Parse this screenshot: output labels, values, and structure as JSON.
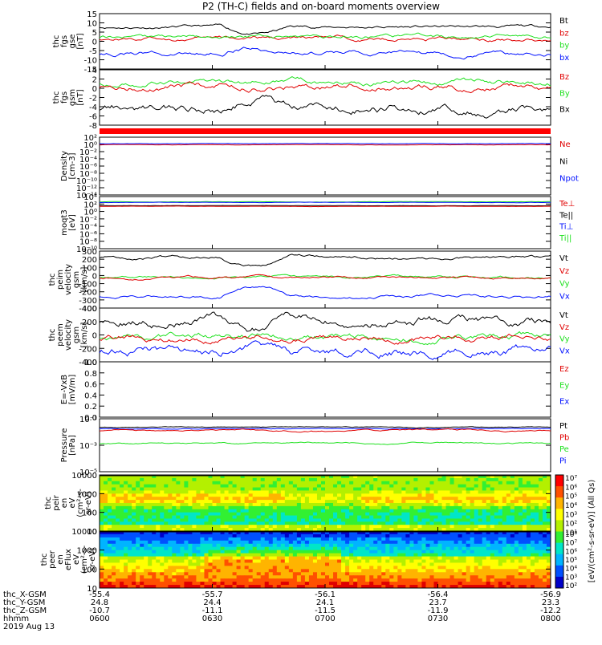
{
  "title": "P2 (TH-C) fields and on-board moments overview",
  "colors": {
    "black": "#000000",
    "red": "#e00000",
    "green": "#1ee01e",
    "blue": "#0010ff",
    "bar": "#ff0000"
  },
  "chart_data": [
    {
      "id": "fgs_gse",
      "type": "line",
      "ylabel": [
        "thc",
        "fgs",
        "gse",
        "[nT]"
      ],
      "yticks": [
        "15",
        "10",
        "5",
        "0",
        "-5",
        "-10",
        "-15"
      ],
      "ylim": [
        -15,
        15
      ],
      "legend": [
        {
          "name": "Bt",
          "color": "black"
        },
        {
          "name": "bz",
          "color": "red"
        },
        {
          "name": "by",
          "color": "green"
        },
        {
          "name": "bx",
          "color": "blue"
        }
      ],
      "series": [
        {
          "name": "Bt",
          "color": "black",
          "level": 7.8,
          "noise": 0.6
        },
        {
          "name": "bz",
          "color": "red",
          "level": 1.5,
          "noise": 0.8
        },
        {
          "name": "by",
          "color": "green",
          "level": 2.5,
          "noise": 0.8
        },
        {
          "name": "bx",
          "color": "blue",
          "level": -6.5,
          "noise": 0.9
        }
      ]
    },
    {
      "id": "fgs_gsm",
      "type": "line",
      "ylabel": [
        "thc",
        "fgs",
        "gsm",
        "[nT]"
      ],
      "yticks": [
        "4",
        "2",
        "0",
        "-2",
        "-4",
        "-6",
        "-8"
      ],
      "ylim": [
        -9,
        4.5
      ],
      "legend": [
        {
          "name": "Bz",
          "color": "red"
        },
        {
          "name": "By",
          "color": "green"
        },
        {
          "name": "Bx",
          "color": "black"
        }
      ],
      "series": [
        {
          "name": "By",
          "color": "green",
          "level": 1.5,
          "noise": 0.5
        },
        {
          "name": "Bz",
          "color": "red",
          "level": 0.5,
          "noise": 0.6
        },
        {
          "name": "Bx",
          "color": "black",
          "level": -4.8,
          "noise": 0.8
        }
      ]
    },
    {
      "id": "flag",
      "type": "bar"
    },
    {
      "id": "density",
      "type": "line",
      "log": true,
      "ylabel": [
        "Density",
        "[cm-3]"
      ],
      "yticks": [
        "10²",
        "10⁰",
        "10⁻²",
        "10⁻⁴",
        "10⁻⁶",
        "10⁻⁸",
        "10⁻¹⁰",
        "10⁻¹²",
        "10⁻¹⁴"
      ],
      "ylim": [
        -15,
        2.5
      ],
      "legend": [
        {
          "name": "Ne",
          "color": "red"
        },
        {
          "name": "Ni",
          "color": "black"
        },
        {
          "name": "Npot",
          "color": "blue"
        }
      ],
      "series": [
        {
          "name": "Ne",
          "color": "red",
          "level": 0.2,
          "noise": 0.04
        },
        {
          "name": "Npot",
          "color": "blue",
          "level": 0.55,
          "noise": 0.04
        }
      ]
    },
    {
      "id": "temp",
      "type": "line",
      "log": true,
      "ylabel": [
        "moqt3",
        "[eV]"
      ],
      "yticks": [
        "10⁴",
        "10²",
        "10⁰",
        "10⁻²",
        "10⁻⁴",
        "10⁻⁶",
        "10⁻⁸",
        "10⁻¹⁰"
      ],
      "ylim": [
        -11,
        5
      ],
      "legend": [
        {
          "name": "Te⊥",
          "color": "red"
        },
        {
          "name": "Te||",
          "color": "black"
        },
        {
          "name": "Ti⊥",
          "color": "blue"
        },
        {
          "name": "Ti||",
          "color": "green"
        }
      ],
      "series": [
        {
          "name": "Ti||",
          "color": "green",
          "level": 3.4,
          "noise": 0.04
        },
        {
          "name": "Ti⊥",
          "color": "blue",
          "level": 3.2,
          "noise": 0.04
        },
        {
          "name": "Te||",
          "color": "black",
          "level": 2.2,
          "noise": 0.03
        },
        {
          "name": "Te⊥",
          "color": "red",
          "level": 2.0,
          "noise": 0.03
        }
      ]
    },
    {
      "id": "peim",
      "type": "line",
      "ylabel": [
        "thc",
        "peim",
        "velocity",
        "gsm",
        "[km/s]"
      ],
      "yticks": [
        "300",
        "200",
        "100",
        "0",
        "-100",
        "-200",
        "-300",
        "-400"
      ],
      "ylim": [
        -420,
        330
      ],
      "legend": [
        {
          "name": "Vt",
          "color": "black"
        },
        {
          "name": "Vz",
          "color": "red"
        },
        {
          "name": "Vy",
          "color": "green"
        },
        {
          "name": "Vx",
          "color": "blue"
        }
      ],
      "series": [
        {
          "name": "Vt",
          "color": "black",
          "level": 250,
          "noise": 15
        },
        {
          "name": "Vy",
          "color": "green",
          "level": -15,
          "noise": 12
        },
        {
          "name": "Vz",
          "color": "red",
          "level": -20,
          "noise": 12
        },
        {
          "name": "Vx",
          "color": "blue",
          "level": -260,
          "noise": 15
        }
      ]
    },
    {
      "id": "peem",
      "type": "line",
      "ylabel": [
        "thc",
        "peem",
        "velocity",
        "gsm",
        "[km/s]"
      ],
      "yticks": [
        "400",
        "200",
        "0",
        "-200",
        "-400"
      ],
      "ylim": [
        -420,
        430
      ],
      "legend": [
        {
          "name": "Vt",
          "color": "black"
        },
        {
          "name": "Vz",
          "color": "red"
        },
        {
          "name": "Vy",
          "color": "green"
        },
        {
          "name": "Vx",
          "color": "blue"
        }
      ],
      "series": [
        {
          "name": "Vt",
          "color": "black",
          "level": 240,
          "noise": 55
        },
        {
          "name": "Vy",
          "color": "green",
          "level": -20,
          "noise": 40
        },
        {
          "name": "Vz",
          "color": "red",
          "level": -40,
          "noise": 40
        },
        {
          "name": "Vx",
          "color": "blue",
          "level": -240,
          "noise": 55
        }
      ]
    },
    {
      "id": "efield",
      "type": "line",
      "ylabel": [
        "E=-VxB",
        "[mV/m]"
      ],
      "yticks": [
        "1.0",
        "0.8",
        "0.6",
        "0.4",
        "0.2",
        "0.0"
      ],
      "ylim": [
        0,
        1
      ],
      "legend": [
        {
          "name": "Ez",
          "color": "red"
        },
        {
          "name": "Ey",
          "color": "green"
        },
        {
          "name": "Ex",
          "color": "blue"
        }
      ],
      "series": []
    },
    {
      "id": "pressure",
      "type": "line",
      "log": true,
      "ylabel": [
        "Pressure",
        "[nPa]"
      ],
      "yticks": [
        "10⁻¹",
        "10⁻³",
        "10⁻⁵"
      ],
      "ylim": [
        -6,
        -0.6
      ],
      "legend": [
        {
          "name": "Pt",
          "color": "black"
        },
        {
          "name": "Pb",
          "color": "red"
        },
        {
          "name": "Pe",
          "color": "green"
        },
        {
          "name": "Pi",
          "color": "blue"
        }
      ],
      "series": [
        {
          "name": "Pt",
          "color": "black",
          "level": -1.45,
          "noise": 0.03
        },
        {
          "name": "Pi",
          "color": "blue",
          "level": -1.6,
          "noise": 0.03
        },
        {
          "name": "Pb",
          "color": "red",
          "level": -1.8,
          "noise": 0.06
        },
        {
          "name": "Pe",
          "color": "green",
          "level": -3.1,
          "noise": 0.06
        }
      ]
    },
    {
      "id": "peir",
      "type": "heatmap",
      "ylabel": [
        "thc",
        "peir",
        "en",
        "eV",
        "(cm²-s-",
        "sr-eV)"
      ],
      "yticks": [
        "10000",
        "1000",
        "100",
        "10"
      ],
      "ylim": [
        0.6,
        4.25
      ]
    },
    {
      "id": "peer",
      "type": "heatmap",
      "ylabel": [
        "thc",
        "peer",
        "en",
        "eFlux",
        "eV",
        "(cm²-s-",
        "sr-eV)"
      ],
      "yticks": [
        "10000",
        "1000",
        "100",
        "10"
      ],
      "ylim": [
        0.6,
        4.25
      ]
    }
  ],
  "colorbar": {
    "ticks": [
      "10⁷",
      "10⁶",
      "10⁵",
      "10⁴",
      "10³",
      "10²",
      "10¹"
    ],
    "ticks2": [
      "10⁸",
      "10⁷",
      "10⁶",
      "10⁵",
      "10⁴",
      "10³",
      "10²"
    ],
    "label": "[eV/(cm²-s-sr-eV)] (All Qs)"
  },
  "x_axis": {
    "ticks": [
      "0600",
      "0630",
      "0700",
      "0730",
      "0800"
    ],
    "rows": [
      {
        "label": "thc_X-GSM",
        "values": [
          "-55.4",
          "-55.7",
          "-56.1",
          "-56.4",
          "-56.9"
        ]
      },
      {
        "label": "thc_Y-GSM",
        "values": [
          "24.8",
          "24.4",
          "24.1",
          "23.7",
          "23.3"
        ]
      },
      {
        "label": "thc_Z-GSM",
        "values": [
          "-10.7",
          "-11.1",
          "-11.5",
          "-11.9",
          "-12.2"
        ]
      },
      {
        "label": "hhmm",
        "values": [
          "0600",
          "0630",
          "0700",
          "0730",
          "0800"
        ]
      }
    ],
    "date": "2019 Aug 13"
  }
}
